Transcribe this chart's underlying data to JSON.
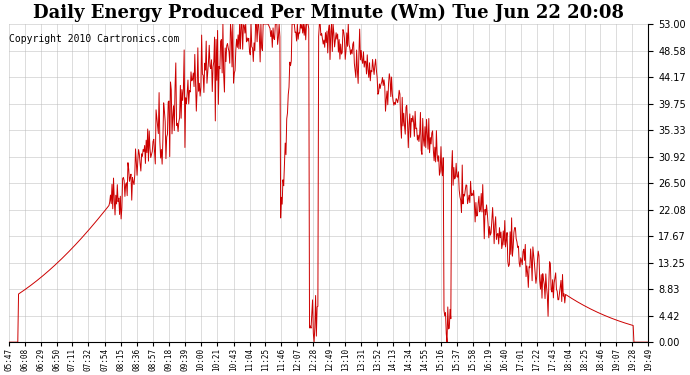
{
  "title": "Daily Energy Produced Per Minute (Wm) Tue Jun 22 20:08",
  "copyright": "Copyright 2010 Cartronics.com",
  "background_color": "#ffffff",
  "line_color": "#cc0000",
  "grid_color": "#bbbbbb",
  "ylim": [
    0,
    53.0
  ],
  "yticks": [
    0.0,
    4.42,
    8.83,
    13.25,
    17.67,
    22.08,
    26.5,
    30.92,
    35.33,
    39.75,
    44.17,
    48.58,
    53.0
  ],
  "xlabel_start": "05:47",
  "xlabel_end": "19:49",
  "title_fontsize": 13,
  "copyright_fontsize": 7
}
